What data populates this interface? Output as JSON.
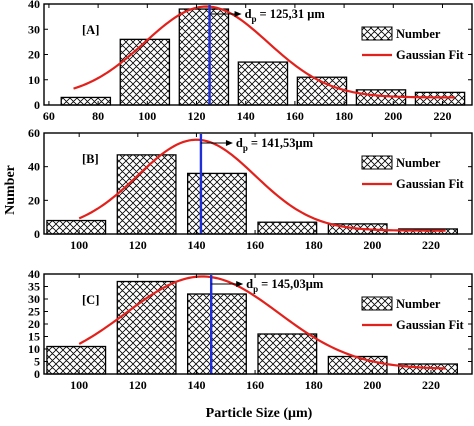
{
  "figure": {
    "ylabel": "Number",
    "xlabel": "Particle Size (μm)"
  },
  "colors": {
    "bar_fill": "#ffffff",
    "hatch": "#000000",
    "gauss": "#e3211c",
    "marker": "#1f2fd9",
    "axis": "#000000"
  },
  "chart_data": [
    {
      "type": "bar",
      "panel_label": "[A]",
      "annotation": "d",
      "annotation_sub": "p",
      "annotation_value": "= 125,31 μm",
      "dp": 125.31,
      "xlim": [
        58,
        232
      ],
      "ylim": [
        0,
        40
      ],
      "xticks": [
        60,
        80,
        100,
        120,
        140,
        160,
        180,
        200,
        220
      ],
      "yticks": [
        0,
        10,
        20,
        30,
        40
      ],
      "bins": [
        [
          65,
          85
        ],
        [
          89,
          109
        ],
        [
          113,
          133
        ],
        [
          137,
          157
        ],
        [
          161,
          181
        ],
        [
          185,
          205
        ],
        [
          209,
          229
        ]
      ],
      "values": [
        3,
        26,
        38,
        17,
        11,
        6,
        5
      ],
      "gauss": {
        "x0": 70,
        "x1": 225,
        "mean": 124,
        "sigma": 25,
        "peak": 39,
        "base": 3
      },
      "legend": {
        "number": "Number",
        "gauss": "Gaussian Fit"
      }
    },
    {
      "type": "bar",
      "panel_label": "[B]",
      "annotation": "d",
      "annotation_sub": "p",
      "annotation_value": "= 141,53μm",
      "dp": 141.53,
      "xlim": [
        88,
        234
      ],
      "ylim": [
        0,
        60
      ],
      "xticks": [
        100,
        120,
        140,
        160,
        180,
        200,
        220
      ],
      "yticks": [
        0,
        20,
        40,
        60
      ],
      "bins": [
        [
          89,
          109
        ],
        [
          113,
          133
        ],
        [
          137,
          157
        ],
        [
          161,
          181
        ],
        [
          185,
          205
        ],
        [
          209,
          229
        ]
      ],
      "values": [
        8,
        47,
        36,
        7,
        6,
        3
      ],
      "gauss": {
        "x0": 100,
        "x1": 225,
        "mean": 140,
        "sigma": 20,
        "peak": 56,
        "base": 2
      },
      "legend": {
        "number": "Number",
        "gauss": "Gaussian Fit"
      }
    },
    {
      "type": "bar",
      "panel_label": "[C]",
      "annotation": "d",
      "annotation_sub": "p",
      "annotation_value": "= 145,03μm",
      "dp": 145.03,
      "xlim": [
        88,
        234
      ],
      "ylim": [
        0,
        40
      ],
      "xticks": [
        100,
        120,
        140,
        160,
        180,
        200,
        220
      ],
      "yticks": [
        0,
        5,
        10,
        15,
        20,
        25,
        30,
        35,
        40
      ],
      "bins": [
        [
          89,
          109
        ],
        [
          113,
          133
        ],
        [
          137,
          157
        ],
        [
          161,
          181
        ],
        [
          185,
          205
        ],
        [
          209,
          229
        ]
      ],
      "values": [
        11,
        37,
        32,
        16,
        7,
        4
      ],
      "gauss": {
        "x0": 100,
        "x1": 225,
        "mean": 142,
        "sigma": 26,
        "peak": 39,
        "base": 2
      },
      "legend": {
        "number": "Number",
        "gauss": "Gaussian Fit"
      }
    }
  ]
}
